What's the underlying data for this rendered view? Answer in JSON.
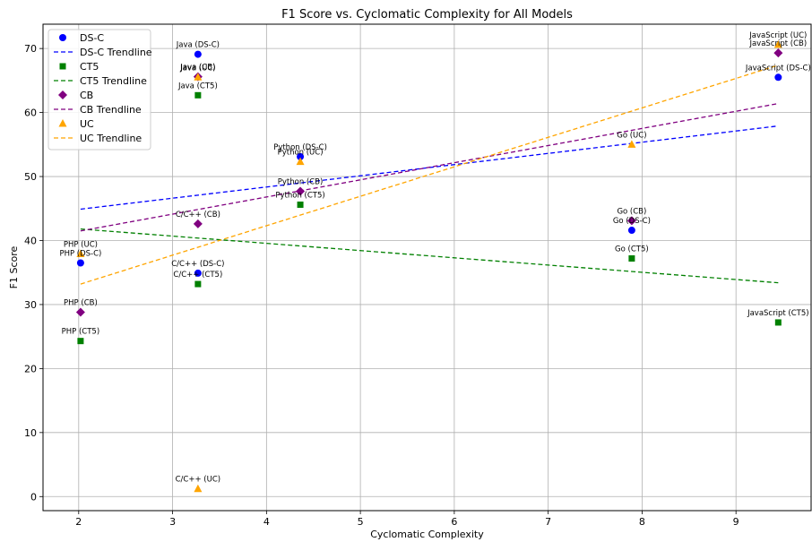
{
  "chart_data": {
    "type": "scatter",
    "title": "F1 Score vs. Cyclomatic Complexity for All Models",
    "xlabel": "Cyclomatic Complexity",
    "ylabel": "F1 Score",
    "xlim": [
      1.62,
      9.8
    ],
    "ylim": [
      -2.2,
      73.8
    ],
    "xticks": [
      2,
      3,
      4,
      5,
      6,
      7,
      8,
      9
    ],
    "yticks": [
      0,
      10,
      20,
      30,
      40,
      50,
      60,
      70
    ],
    "grid": true,
    "legend_position": "upper-left",
    "series": [
      {
        "name": "DS-C",
        "color": "#0000ff",
        "marker": "circle",
        "trend_name": "DS-C Trendline",
        "trend": [
          [
            2.02,
            44.9
          ],
          [
            9.45,
            57.9
          ]
        ],
        "points": [
          {
            "x": 2.02,
            "y": 36.5,
            "label": "PHP (DS-C)"
          },
          {
            "x": 3.27,
            "y": 69.1,
            "label": "Java (DS-C)"
          },
          {
            "x": 3.27,
            "y": 34.9,
            "label": "C/C++ (DS-C)"
          },
          {
            "x": 4.36,
            "y": 53.1,
            "label": "Python (DS-C)"
          },
          {
            "x": 7.89,
            "y": 41.6,
            "label": "Go (DS-C)"
          },
          {
            "x": 9.45,
            "y": 65.5,
            "label": "JavaScript (DS-C)"
          }
        ]
      },
      {
        "name": "CT5",
        "color": "#008000",
        "marker": "square",
        "trend_name": "CT5 Trendline",
        "trend": [
          [
            2.02,
            41.8
          ],
          [
            9.45,
            33.4
          ]
        ],
        "points": [
          {
            "x": 2.02,
            "y": 24.3,
            "label": "PHP (CT5)"
          },
          {
            "x": 3.27,
            "y": 62.7,
            "label": "Java (CT5)"
          },
          {
            "x": 3.27,
            "y": 33.2,
            "label": "C/C++ (CT5)"
          },
          {
            "x": 4.36,
            "y": 45.6,
            "label": "Python (CT5)"
          },
          {
            "x": 7.89,
            "y": 37.2,
            "label": "Go (CT5)"
          },
          {
            "x": 9.45,
            "y": 27.2,
            "label": "JavaScript (CT5)"
          }
        ]
      },
      {
        "name": "CB",
        "color": "#800080",
        "marker": "diamond",
        "trend_name": "CB Trendline",
        "trend": [
          [
            2.02,
            41.5
          ],
          [
            9.45,
            61.4
          ]
        ],
        "points": [
          {
            "x": 2.02,
            "y": 28.8,
            "label": "PHP (CB)"
          },
          {
            "x": 3.27,
            "y": 65.6,
            "label": "Java (CB)"
          },
          {
            "x": 3.27,
            "y": 42.6,
            "label": "C/C++ (CB)"
          },
          {
            "x": 4.36,
            "y": 47.7,
            "label": "Python (CB)"
          },
          {
            "x": 7.89,
            "y": 43.1,
            "label": "Go (CB)"
          },
          {
            "x": 9.45,
            "y": 69.3,
            "label": "JavaScript (CB)"
          }
        ]
      },
      {
        "name": "UC",
        "color": "#ffa500",
        "marker": "triangle",
        "trend_name": "UC Trendline",
        "trend": [
          [
            2.02,
            33.2
          ],
          [
            9.45,
            67.4
          ]
        ],
        "points": [
          {
            "x": 2.02,
            "y": 37.9,
            "label": "PHP (UC)"
          },
          {
            "x": 3.27,
            "y": 65.5,
            "label": "Java (UC)"
          },
          {
            "x": 3.27,
            "y": 1.2,
            "label": "C/C++ (UC)"
          },
          {
            "x": 4.36,
            "y": 52.3,
            "label": "Python (UC)"
          },
          {
            "x": 7.89,
            "y": 55.0,
            "label": "Go (UC)"
          },
          {
            "x": 9.45,
            "y": 70.6,
            "label": "JavaScript (UC)"
          }
        ]
      }
    ]
  }
}
